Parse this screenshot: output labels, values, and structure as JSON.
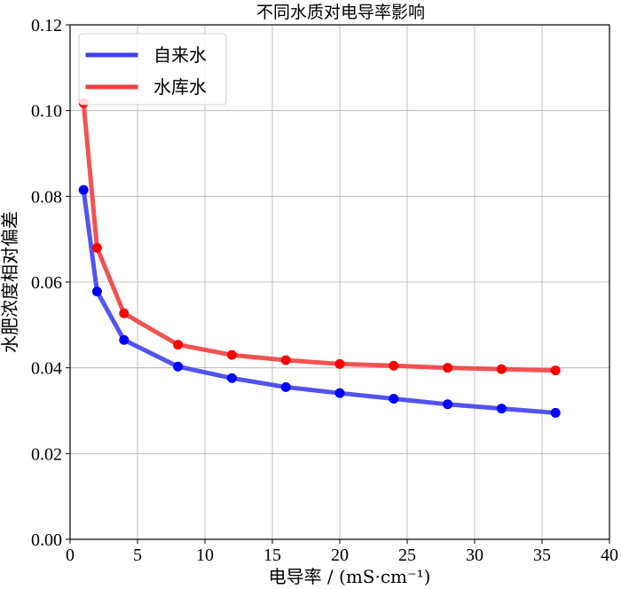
{
  "chart_data": {
    "type": "line",
    "title": "不同水质对电导率影响",
    "xlabel": "电导率 / (mS·cm⁻¹)",
    "ylabel": "水肥浓度相对偏差",
    "xlim": [
      0,
      40
    ],
    "ylim": [
      0,
      0.12
    ],
    "x_ticks": [
      0,
      5,
      10,
      15,
      20,
      25,
      30,
      35,
      40
    ],
    "y_ticks": [
      0.0,
      0.02,
      0.04,
      0.06,
      0.08,
      0.1,
      0.12
    ],
    "x_tick_labels": [
      "0",
      "5",
      "10",
      "15",
      "20",
      "25",
      "30",
      "35",
      "40"
    ],
    "y_tick_labels": [
      "0.00",
      "0.02",
      "0.04",
      "0.06",
      "0.08",
      "0.10",
      "0.12"
    ],
    "grid": true,
    "legend_position": "top-left",
    "x": [
      1,
      2,
      4,
      8,
      12,
      16,
      20,
      24,
      28,
      32,
      36
    ],
    "series": [
      {
        "name": "自来水",
        "line_color": "#4040f0",
        "marker_color": "#0000ff",
        "values": [
          0.0815,
          0.0578,
          0.0465,
          0.0403,
          0.0376,
          0.0355,
          0.0341,
          0.0328,
          0.0315,
          0.0305,
          0.0295
        ]
      },
      {
        "name": "水库水",
        "line_color": "#f04040",
        "marker_color": "#ff0000",
        "values": [
          0.1018,
          0.068,
          0.0527,
          0.0454,
          0.043,
          0.0418,
          0.0409,
          0.0405,
          0.04,
          0.0397,
          0.0394
        ]
      }
    ]
  }
}
